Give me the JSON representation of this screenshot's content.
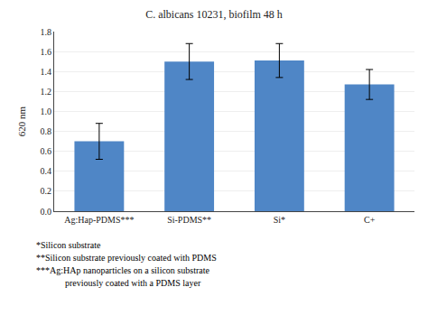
{
  "chart_data": {
    "type": "bar",
    "title": "C. albicans 10231, biofilm 48 h",
    "categories": [
      "Ag:Hap-PDMS***",
      "Si-PDMS**",
      "Si*",
      "C+"
    ],
    "values": [
      0.7,
      1.5,
      1.51,
      1.27
    ],
    "errors": [
      0.18,
      0.18,
      0.17,
      0.15
    ],
    "color": "#4f86c6",
    "ylabel": "620 nm",
    "ylim": [
      0,
      1.8
    ],
    "yticks": [
      {
        "value": 0,
        "label": "0.0"
      },
      0.2,
      0.4,
      0.6,
      0.8,
      {
        "value": 1.0,
        "label": "1.0"
      },
      1.2,
      1.4,
      1.6,
      1.8
    ],
    "grid": true,
    "annotations": [
      "*Silicon substrate",
      "**Silicon substrate previously coated with PDMS",
      "***Ag:HAp nanoparticles on a silicon substrate",
      "previously coated with a PDMS layer"
    ]
  }
}
